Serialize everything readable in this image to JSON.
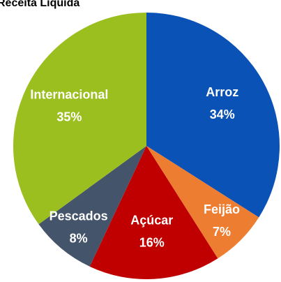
{
  "chart_data": {
    "type": "pie",
    "title": "Receita Líquida",
    "categories": [
      "Arroz",
      "Feijão",
      "Açúcar",
      "Pescados",
      "Internacional"
    ],
    "values": [
      34,
      7,
      16,
      8,
      35
    ],
    "value_labels": [
      "34%",
      "7%",
      "16%",
      "8%",
      "35%"
    ],
    "colors": [
      "#0b52b6",
      "#ed7d31",
      "#c00000",
      "#44546a",
      "#9bbf1e"
    ]
  }
}
